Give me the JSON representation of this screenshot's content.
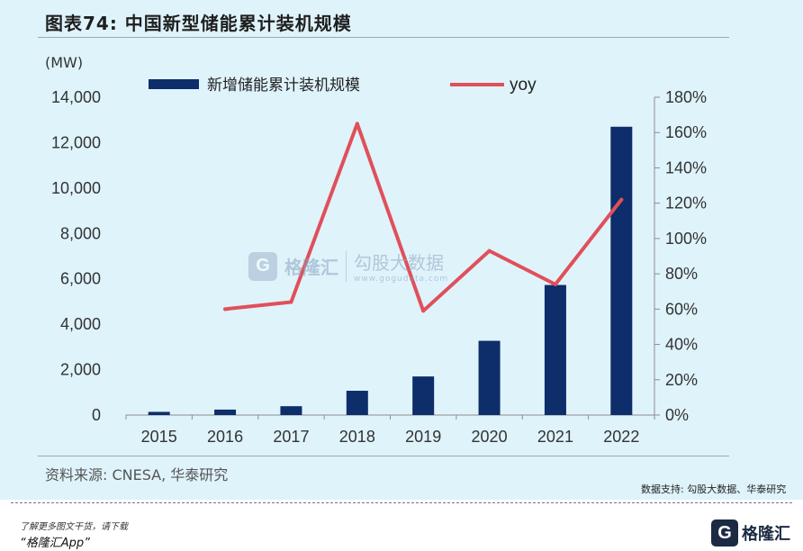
{
  "figure": {
    "title": "图表74:  中国新型储能累计装机规模",
    "unit": "(MW)",
    "source": "资料来源: CNESA, 华泰研究",
    "data_support": "数据支持: 勾股大数据、华泰研究"
  },
  "watermark": {
    "brand": "格隆汇",
    "site_name": "勾股大数据",
    "site_url": "www.gogudata.com"
  },
  "footer": {
    "line1": "了解更多图文干货，请下载",
    "line2": "“格隆汇App”",
    "brand_name": "格隆汇"
  },
  "colors": {
    "bar": "#0d2d6b",
    "line": "#e0505a",
    "background": "#dff3fb"
  },
  "chart_data": {
    "type": "bar",
    "categories": [
      "2015",
      "2016",
      "2017",
      "2018",
      "2019",
      "2020",
      "2021",
      "2022"
    ],
    "series": [
      {
        "name": "新增储能累计装机规模",
        "type": "bar",
        "axis": "left",
        "values": [
          140,
          240,
          390,
          1070,
          1700,
          3270,
          5730,
          12700
        ]
      },
      {
        "name": "yoy",
        "type": "line",
        "axis": "right",
        "values": [
          null,
          60,
          64,
          165,
          59,
          93,
          74,
          122
        ]
      }
    ],
    "y_left": {
      "min": 0,
      "max": 14000,
      "ticks": [
        "0",
        "2,000",
        "4,000",
        "6,000",
        "8,000",
        "10,000",
        "12,000",
        "14,000"
      ]
    },
    "y_right": {
      "min": 0,
      "max": 180,
      "ticks": [
        "0%",
        "20%",
        "40%",
        "60%",
        "80%",
        "100%",
        "120%",
        "140%",
        "160%",
        "180%"
      ]
    },
    "legend_position": "top",
    "grid": false
  }
}
